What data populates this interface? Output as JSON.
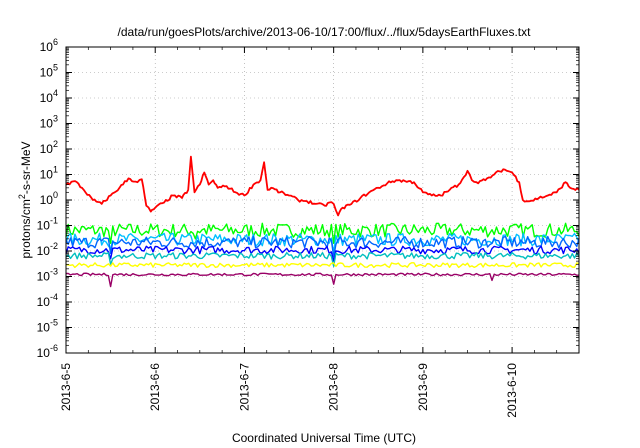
{
  "chart_data": {
    "type": "line",
    "title": "/data/run/goesPlots/archive/2013-06-10/17:00/flux/../flux/5daysEarthFluxes.txt",
    "xlabel": "Coordinated Universal Time (UTC)",
    "ylabel": {
      "prefix": "protons/cm",
      "sup": "2",
      "suffix": "-s-sr-MeV"
    },
    "yscale": "log",
    "ylim": [
      1e-06,
      1000000.0
    ],
    "y_ticks": [
      {
        "v": 1e-06,
        "e": "-6"
      },
      {
        "v": 1e-05,
        "e": "-5"
      },
      {
        "v": 0.0001,
        "e": "-4"
      },
      {
        "v": 0.001,
        "e": "-3"
      },
      {
        "v": 0.01,
        "e": "-2"
      },
      {
        "v": 0.1,
        "e": "-1"
      },
      {
        "v": 1,
        "e": "0"
      },
      {
        "v": 10,
        "e": "1"
      },
      {
        "v": 100,
        "e": "2"
      },
      {
        "v": 1000.0,
        "e": "3"
      },
      {
        "v": 10000.0,
        "e": "4"
      },
      {
        "v": 100000.0,
        "e": "5"
      },
      {
        "v": 1000000.0,
        "e": "6"
      }
    ],
    "y_tick_base": "10",
    "xlim": [
      0,
      5.75
    ],
    "x_ticks": [
      {
        "day": 0,
        "label": "2013-6-5"
      },
      {
        "day": 1,
        "label": "2013-6-6"
      },
      {
        "day": 2,
        "label": "2013-6-7"
      },
      {
        "day": 3,
        "label": "2013-6-8"
      },
      {
        "day": 4,
        "label": "2013-6-9"
      },
      {
        "day": 5,
        "label": "2013-6-10"
      }
    ],
    "grid": true,
    "series": [
      {
        "color": "#ff0000",
        "points": [
          [
            0.0,
            4.0
          ],
          [
            0.1,
            5.5
          ],
          [
            0.2,
            2.5
          ],
          [
            0.3,
            1.0
          ],
          [
            0.4,
            0.7
          ],
          [
            0.5,
            1.5
          ],
          [
            0.6,
            3.0
          ],
          [
            0.7,
            7.0
          ],
          [
            0.8,
            5.0
          ],
          [
            0.85,
            6.5
          ],
          [
            0.9,
            0.6
          ],
          [
            0.95,
            0.35
          ],
          [
            1.0,
            0.5
          ],
          [
            1.1,
            0.8
          ],
          [
            1.2,
            1.5
          ],
          [
            1.3,
            1.2
          ],
          [
            1.37,
            2.5
          ],
          [
            1.4,
            50
          ],
          [
            1.44,
            2.0
          ],
          [
            1.5,
            4.0
          ],
          [
            1.55,
            12
          ],
          [
            1.6,
            4.0
          ],
          [
            1.65,
            6.0
          ],
          [
            1.7,
            3.0
          ],
          [
            1.8,
            3.5
          ],
          [
            1.9,
            2.0
          ],
          [
            2.0,
            1.5
          ],
          [
            2.1,
            4.0
          ],
          [
            2.18,
            6.0
          ],
          [
            2.22,
            30
          ],
          [
            2.26,
            2.5
          ],
          [
            2.3,
            3.0
          ],
          [
            2.4,
            2.0
          ],
          [
            2.5,
            1.5
          ],
          [
            2.6,
            1.0
          ],
          [
            2.7,
            0.9
          ],
          [
            2.8,
            0.7
          ],
          [
            2.9,
            0.6
          ],
          [
            2.95,
            0.8
          ],
          [
            3.0,
            0.7
          ],
          [
            3.05,
            0.25
          ],
          [
            3.1,
            0.5
          ],
          [
            3.2,
            0.7
          ],
          [
            3.3,
            1.2
          ],
          [
            3.4,
            2.0
          ],
          [
            3.5,
            3.0
          ],
          [
            3.6,
            4.5
          ],
          [
            3.7,
            6.0
          ],
          [
            3.8,
            5.5
          ],
          [
            3.9,
            5.0
          ],
          [
            4.0,
            2.0
          ],
          [
            4.1,
            1.5
          ],
          [
            4.2,
            1.5
          ],
          [
            4.3,
            2.5
          ],
          [
            4.4,
            4.0
          ],
          [
            4.5,
            14
          ],
          [
            4.55,
            6.0
          ],
          [
            4.6,
            5.0
          ],
          [
            4.7,
            6.0
          ],
          [
            4.8,
            10
          ],
          [
            4.9,
            16
          ],
          [
            5.0,
            12
          ],
          [
            5.08,
            5.0
          ],
          [
            5.12,
            1.0
          ],
          [
            5.2,
            0.9
          ],
          [
            5.3,
            1.2
          ],
          [
            5.4,
            1.5
          ],
          [
            5.5,
            2.0
          ],
          [
            5.6,
            5.0
          ],
          [
            5.65,
            3.0
          ],
          [
            5.75,
            2.5
          ]
        ]
      },
      {
        "color": "#00ff00",
        "base": 0.065,
        "spread": 0.55,
        "dips": [
          [
            0.5,
            0.02
          ],
          [
            1.45,
            0.03
          ],
          [
            3.0,
            0.02
          ]
        ]
      },
      {
        "color": "#00bfff",
        "base": 0.028,
        "spread": 0.5,
        "dips": [
          [
            0.5,
            0.012
          ],
          [
            3.0,
            0.008
          ]
        ]
      },
      {
        "color": "#0066ff",
        "base": 0.022,
        "spread": 0.45,
        "dips": [
          [
            0.5,
            0.008
          ],
          [
            3.0,
            0.006
          ]
        ]
      },
      {
        "color": "#0000ff",
        "base": 0.011,
        "spread": 0.3,
        "dips": [
          [
            0.5,
            0.005
          ],
          [
            3.0,
            0.004
          ]
        ]
      },
      {
        "color": "#00bfbf",
        "base": 0.0065,
        "spread": 0.25,
        "dips": [
          [
            0.5,
            0.003
          ],
          [
            3.0,
            0.0025
          ]
        ]
      },
      {
        "color": "#ffff00",
        "base": 0.0028,
        "spread": 0.18,
        "dips": []
      },
      {
        "color": "#990066",
        "base": 0.0012,
        "spread": 0.1,
        "dips": [
          [
            0.5,
            0.0004
          ],
          [
            3.0,
            0.0005
          ],
          [
            4.78,
            0.0007
          ]
        ]
      }
    ]
  }
}
